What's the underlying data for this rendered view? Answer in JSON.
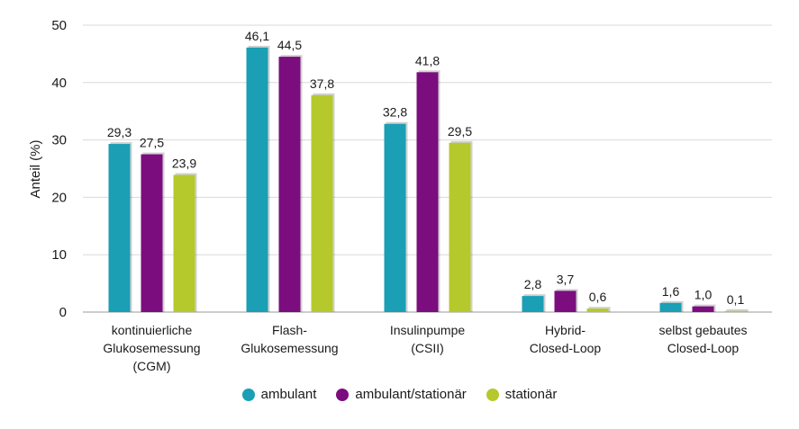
{
  "chart_data": {
    "type": "bar",
    "title": "",
    "xlabel": "",
    "ylabel": "Anteil (%)",
    "ylim": [
      0,
      50
    ],
    "yticks": [
      "0",
      "10",
      "20",
      "30",
      "40",
      "50"
    ],
    "grid": true,
    "legend_position": "bottom",
    "categories": [
      [
        "kontinuierliche",
        "Glukosemessung",
        "(CGM)"
      ],
      [
        "Flash-",
        "Glukosemessung"
      ],
      [
        "Insulinpumpe",
        "(CSII)"
      ],
      [
        "Hybrid-",
        "Closed-Loop"
      ],
      [
        "selbst gebautes",
        "Closed-Loop"
      ]
    ],
    "series": [
      {
        "name": "ambulant",
        "color": "#1a9fb5",
        "values": [
          29.3,
          46.1,
          32.8,
          2.8,
          1.6
        ],
        "labels": [
          "29,3",
          "46,1",
          "32,8",
          "2,8",
          "1,6"
        ]
      },
      {
        "name": "ambulant/stationär",
        "color": "#7b0d7e",
        "values": [
          27.5,
          44.5,
          41.8,
          3.7,
          1.0
        ],
        "labels": [
          "27,5",
          "44,5",
          "41,8",
          "3,7",
          "1,0"
        ]
      },
      {
        "name": "stationär",
        "color": "#b5c92d",
        "values": [
          23.9,
          37.8,
          29.5,
          0.6,
          0.1
        ],
        "labels": [
          "23,9",
          "37,8",
          "29,5",
          "0,6",
          "0,1"
        ]
      }
    ]
  }
}
